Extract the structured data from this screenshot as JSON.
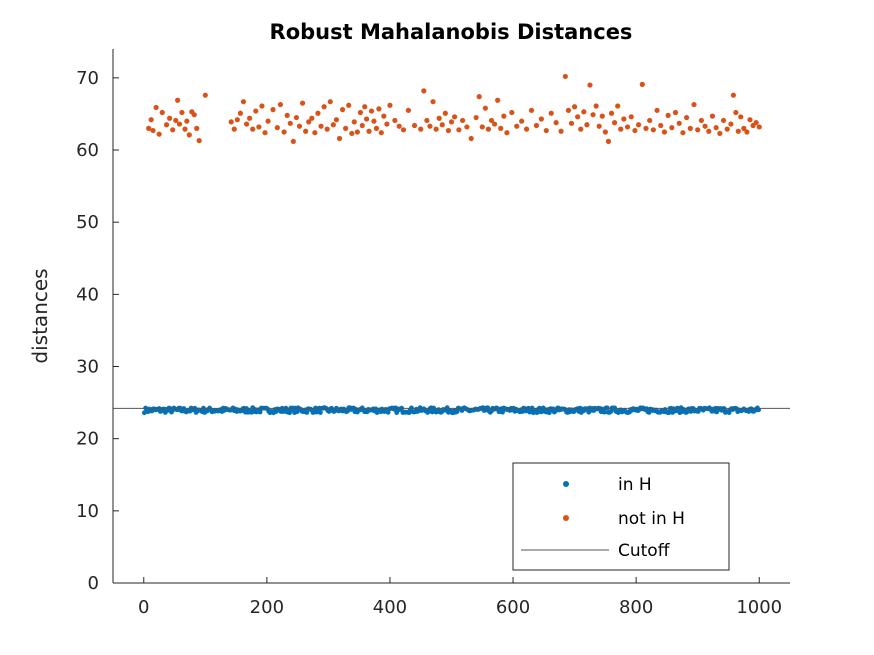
{
  "chart_data": {
    "type": "scatter",
    "title": "Robust Mahalanobis Distances",
    "xlabel": "",
    "ylabel": "distances",
    "xlim": [
      -50,
      1050
    ],
    "ylim": [
      0,
      74
    ],
    "xticks": [
      0,
      200,
      400,
      600,
      800,
      1000
    ],
    "yticks": [
      0,
      10,
      20,
      30,
      40,
      50,
      60,
      70
    ],
    "grid": false,
    "legend_position": "bottom-right",
    "cutoff": 24.2,
    "series": [
      {
        "name": "in H",
        "color": "#0072BD",
        "x_range": [
          1,
          1000
        ],
        "y_range": [
          23.6,
          24.3
        ],
        "points": [
          [
            1,
            24.0
          ],
          [
            100,
            23.9
          ],
          [
            200,
            24.0
          ],
          [
            300,
            23.9
          ],
          [
            400,
            24.0
          ],
          [
            500,
            23.9
          ],
          [
            600,
            24.0
          ],
          [
            700,
            23.9
          ],
          [
            800,
            24.0
          ],
          [
            900,
            23.9
          ],
          [
            1000,
            24.0
          ]
        ]
      },
      {
        "name": "not in H",
        "color": "#D95319",
        "points": [
          [
            8,
            63.0
          ],
          [
            12,
            64.2
          ],
          [
            15,
            62.7
          ],
          [
            20,
            65.9
          ],
          [
            25,
            62.2
          ],
          [
            30,
            65.2
          ],
          [
            37,
            63.5
          ],
          [
            42,
            64.4
          ],
          [
            47,
            62.8
          ],
          [
            52,
            64.1
          ],
          [
            55,
            66.9
          ],
          [
            58,
            63.6
          ],
          [
            62,
            65.2
          ],
          [
            67,
            62.9
          ],
          [
            70,
            64.0
          ],
          [
            74,
            62.1
          ],
          [
            78,
            65.3
          ],
          [
            82,
            64.9
          ],
          [
            86,
            63.0
          ],
          [
            90,
            61.3
          ],
          [
            100,
            67.6
          ],
          [
            142,
            63.9
          ],
          [
            147,
            62.9
          ],
          [
            152,
            64.2
          ],
          [
            157,
            65.1
          ],
          [
            162,
            66.7
          ],
          [
            167,
            63.6
          ],
          [
            172,
            64.4
          ],
          [
            177,
            62.9
          ],
          [
            182,
            65.4
          ],
          [
            187,
            63.2
          ],
          [
            192,
            66.1
          ],
          [
            197,
            62.4
          ],
          [
            202,
            64.0
          ],
          [
            210,
            65.6
          ],
          [
            217,
            63.1
          ],
          [
            222,
            66.3
          ],
          [
            228,
            62.5
          ],
          [
            233,
            64.8
          ],
          [
            238,
            63.7
          ],
          [
            243,
            61.2
          ],
          [
            248,
            64.5
          ],
          [
            253,
            63.3
          ],
          [
            258,
            66.5
          ],
          [
            263,
            62.6
          ],
          [
            268,
            63.9
          ],
          [
            273,
            64.4
          ],
          [
            278,
            62.4
          ],
          [
            283,
            65.1
          ],
          [
            288,
            63.3
          ],
          [
            293,
            66.0
          ],
          [
            298,
            62.9
          ],
          [
            303,
            66.7
          ],
          [
            308,
            63.5
          ],
          [
            313,
            64.2
          ],
          [
            318,
            61.6
          ],
          [
            323,
            65.6
          ],
          [
            328,
            63.0
          ],
          [
            333,
            66.2
          ],
          [
            338,
            62.3
          ],
          [
            342,
            63.9
          ],
          [
            347,
            62.5
          ],
          [
            352,
            65.2
          ],
          [
            355,
            63.4
          ],
          [
            359,
            66.0
          ],
          [
            362,
            64.3
          ],
          [
            366,
            62.6
          ],
          [
            370,
            65.4
          ],
          [
            374,
            64.0
          ],
          [
            378,
            63.0
          ],
          [
            382,
            65.7
          ],
          [
            386,
            62.4
          ],
          [
            390,
            64.7
          ],
          [
            395,
            63.6
          ],
          [
            400,
            66.2
          ],
          [
            408,
            64.1
          ],
          [
            415,
            63.3
          ],
          [
            422,
            62.8
          ],
          [
            430,
            65.5
          ],
          [
            440,
            63.4
          ],
          [
            450,
            62.9
          ],
          [
            455,
            68.2
          ],
          [
            460,
            64.1
          ],
          [
            465,
            63.3
          ],
          [
            470,
            66.7
          ],
          [
            475,
            62.9
          ],
          [
            480,
            64.4
          ],
          [
            485,
            63.5
          ],
          [
            490,
            65.1
          ],
          [
            495,
            62.7
          ],
          [
            500,
            63.9
          ],
          [
            505,
            64.6
          ],
          [
            512,
            62.8
          ],
          [
            518,
            64.1
          ],
          [
            525,
            63.2
          ],
          [
            532,
            61.6
          ],
          [
            540,
            64.5
          ],
          [
            545,
            67.4
          ],
          [
            550,
            63.2
          ],
          [
            555,
            65.8
          ],
          [
            560,
            62.9
          ],
          [
            565,
            64.1
          ],
          [
            570,
            63.6
          ],
          [
            575,
            66.9
          ],
          [
            580,
            63.0
          ],
          [
            585,
            64.7
          ],
          [
            590,
            62.4
          ],
          [
            598,
            65.2
          ],
          [
            606,
            63.3
          ],
          [
            614,
            64.0
          ],
          [
            622,
            62.9
          ],
          [
            630,
            65.5
          ],
          [
            638,
            63.4
          ],
          [
            646,
            64.3
          ],
          [
            654,
            62.7
          ],
          [
            662,
            65.1
          ],
          [
            670,
            63.8
          ],
          [
            678,
            62.6
          ],
          [
            685,
            70.2
          ],
          [
            690,
            65.5
          ],
          [
            695,
            63.7
          ],
          [
            700,
            66.0
          ],
          [
            705,
            64.6
          ],
          [
            710,
            62.9
          ],
          [
            715,
            65.3
          ],
          [
            720,
            63.5
          ],
          [
            725,
            69.0
          ],
          [
            730,
            64.9
          ],
          [
            735,
            66.1
          ],
          [
            740,
            63.3
          ],
          [
            745,
            64.7
          ],
          [
            750,
            62.5
          ],
          [
            755,
            61.2
          ],
          [
            760,
            65.1
          ],
          [
            765,
            63.8
          ],
          [
            770,
            66.1
          ],
          [
            775,
            62.9
          ],
          [
            780,
            64.3
          ],
          [
            786,
            63.2
          ],
          [
            792,
            64.6
          ],
          [
            798,
            62.7
          ],
          [
            804,
            63.5
          ],
          [
            810,
            69.1
          ],
          [
            816,
            63.0
          ],
          [
            822,
            64.1
          ],
          [
            828,
            62.8
          ],
          [
            834,
            65.5
          ],
          [
            840,
            63.4
          ],
          [
            846,
            62.5
          ],
          [
            852,
            64.8
          ],
          [
            858,
            63.1
          ],
          [
            864,
            65.2
          ],
          [
            870,
            63.7
          ],
          [
            876,
            62.4
          ],
          [
            882,
            64.5
          ],
          [
            888,
            63.0
          ],
          [
            894,
            66.3
          ],
          [
            900,
            62.8
          ],
          [
            906,
            64.1
          ],
          [
            912,
            63.3
          ],
          [
            918,
            62.6
          ],
          [
            924,
            64.7
          ],
          [
            930,
            63.1
          ],
          [
            936,
            62.3
          ],
          [
            942,
            64.1
          ],
          [
            948,
            62.9
          ],
          [
            954,
            63.6
          ],
          [
            958,
            67.6
          ],
          [
            962,
            65.2
          ],
          [
            966,
            62.6
          ],
          [
            970,
            64.6
          ],
          [
            975,
            63.0
          ],
          [
            980,
            62.5
          ],
          [
            985,
            64.2
          ],
          [
            990,
            63.4
          ],
          [
            995,
            63.8
          ],
          [
            1000,
            63.2
          ]
        ]
      },
      {
        "name": "Cutoff",
        "color": "#555555",
        "type": "line",
        "value": 24.2
      }
    ]
  }
}
